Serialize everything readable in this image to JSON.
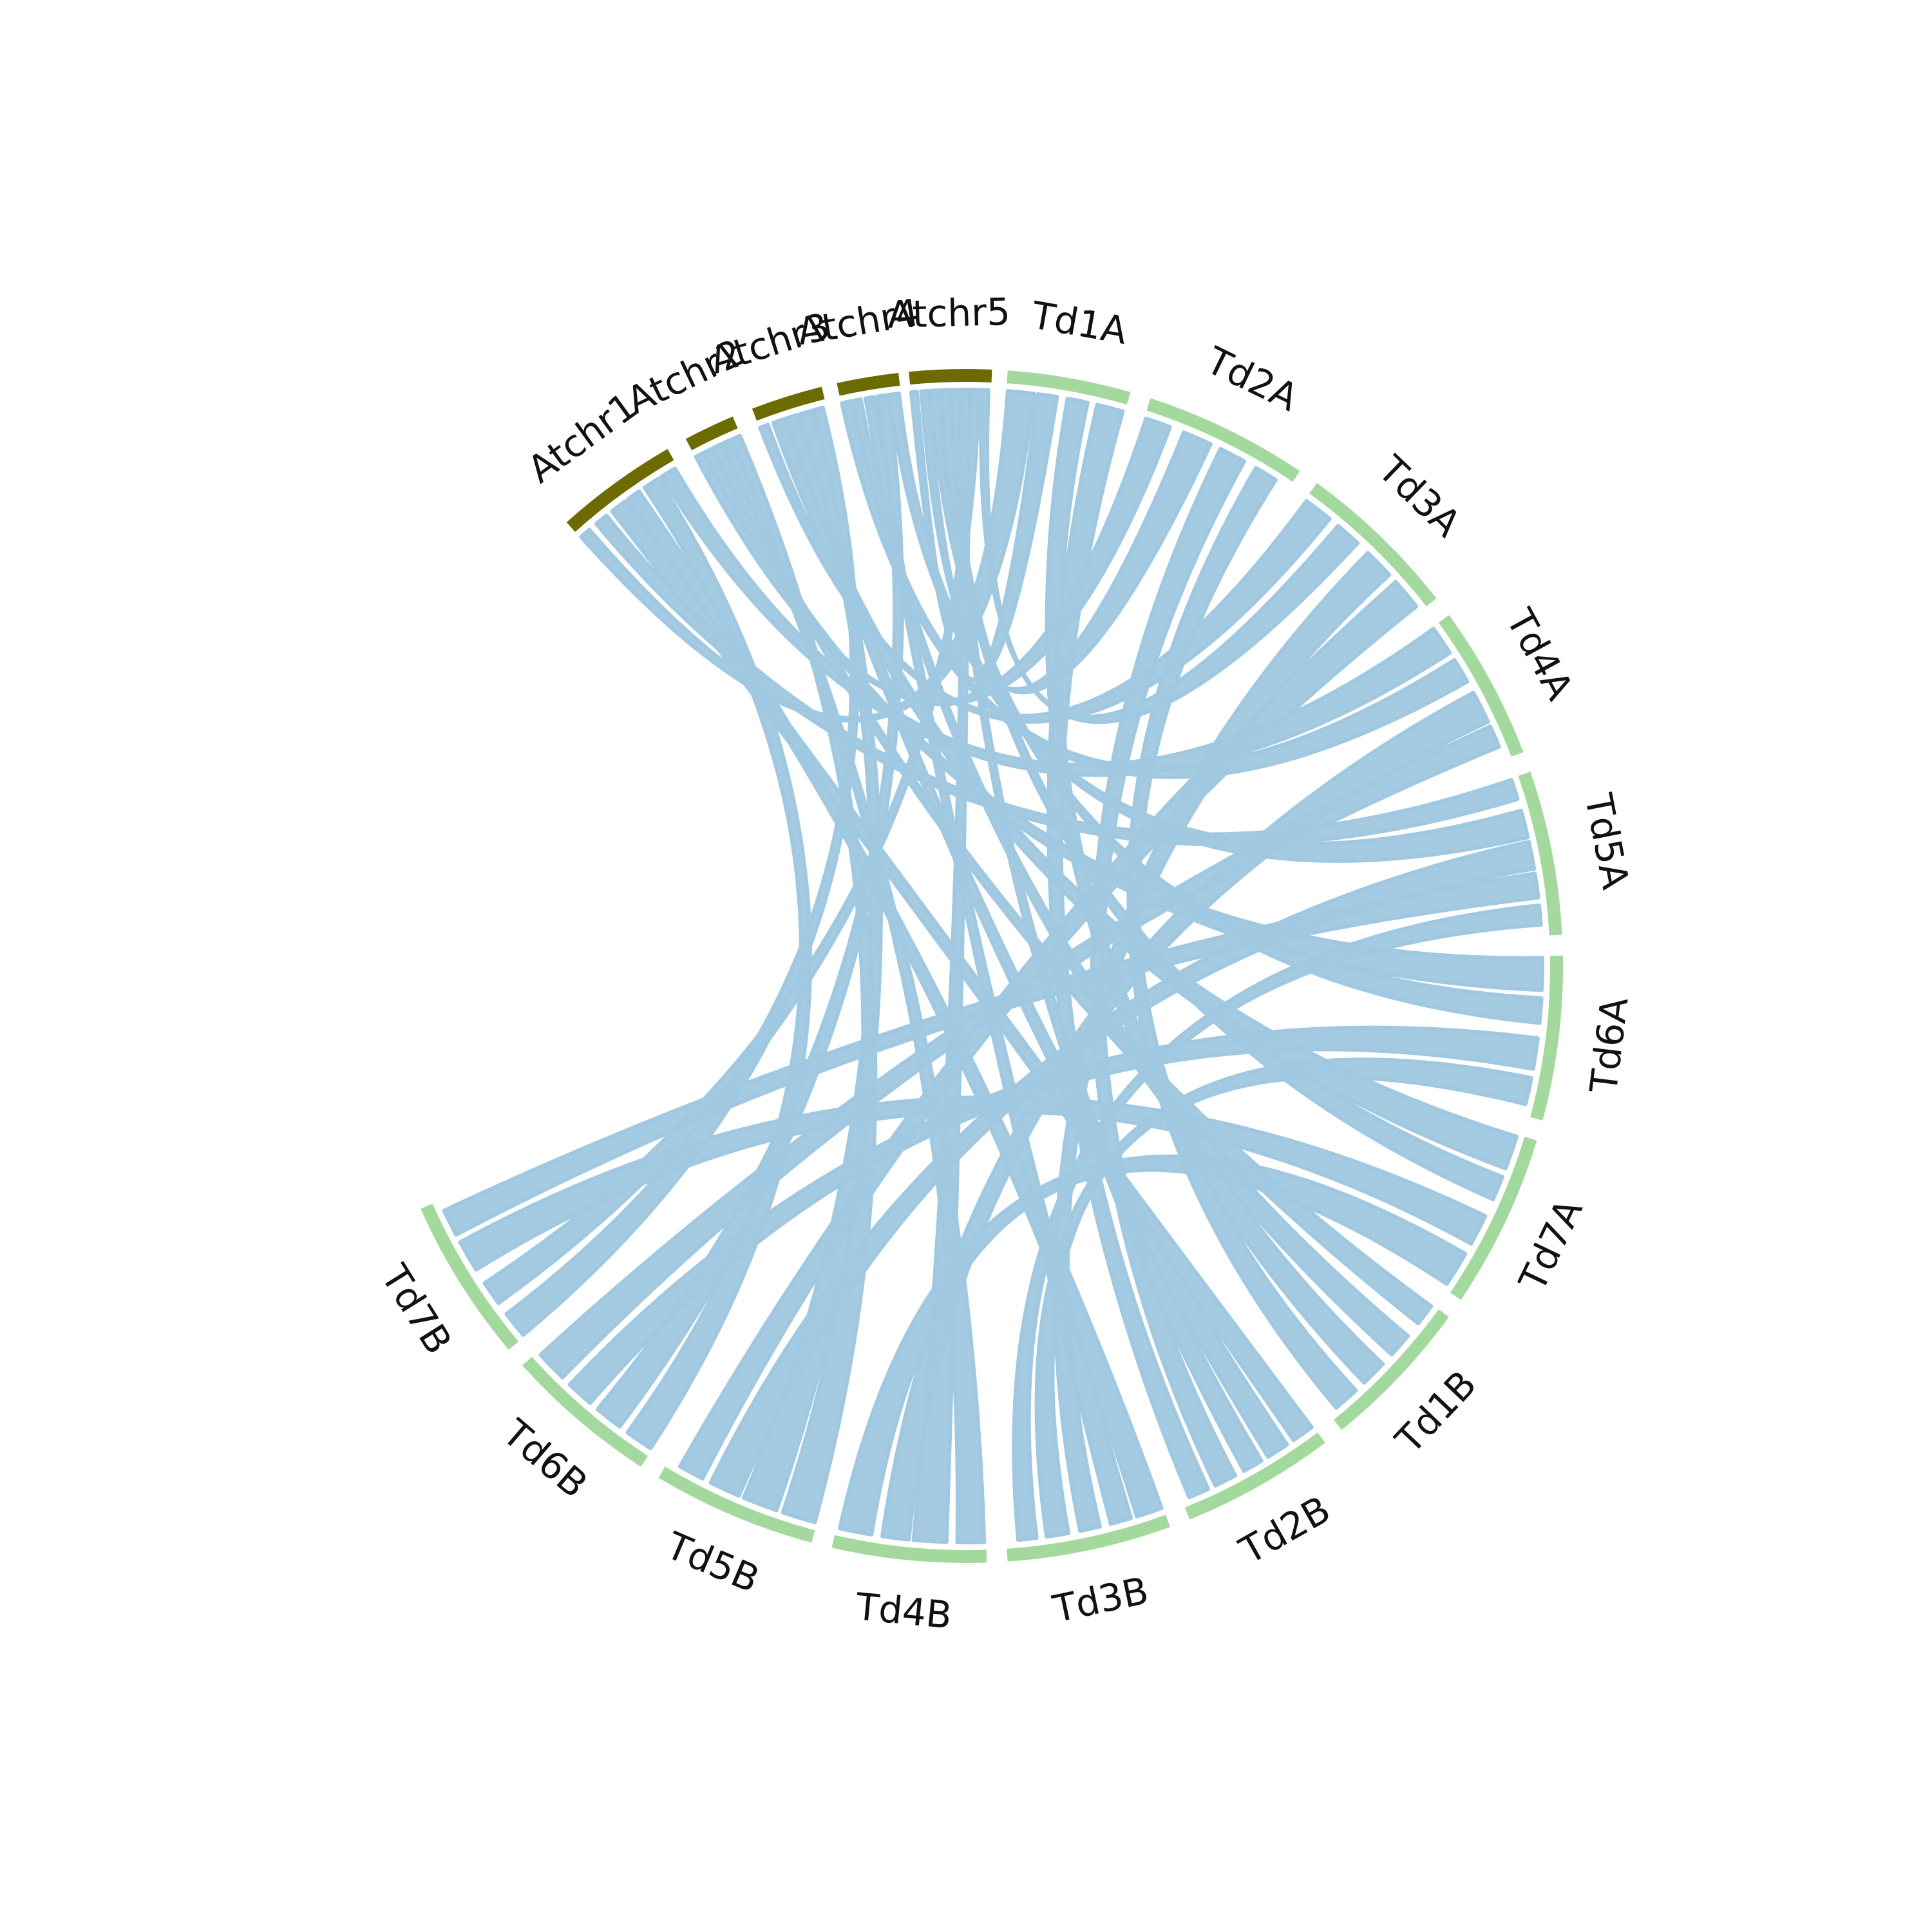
{
  "colors": {
    "background": "#ffffff",
    "outgroup_track": "#6b6b00",
    "wheat_track": "#a3d99d",
    "link": "#a0c8e0",
    "label": "#111111"
  },
  "chromosomes": [
    {
      "name": "Atchr1",
      "group": "outgroup"
    },
    {
      "name": "Atchr2",
      "group": "outgroup"
    },
    {
      "name": "Atchr3",
      "group": "outgroup"
    },
    {
      "name": "Atchr4",
      "group": "outgroup"
    },
    {
      "name": "Atchr5",
      "group": "outgroup"
    },
    {
      "name": "Td1A",
      "group": "wheat"
    },
    {
      "name": "Td2A",
      "group": "wheat"
    },
    {
      "name": "Td3A",
      "group": "wheat"
    },
    {
      "name": "Td4A",
      "group": "wheat"
    },
    {
      "name": "Td5A",
      "group": "wheat"
    },
    {
      "name": "Td6A",
      "group": "wheat"
    },
    {
      "name": "Td7A",
      "group": "wheat"
    },
    {
      "name": "Td1B",
      "group": "wheat"
    },
    {
      "name": "Td2B",
      "group": "wheat"
    },
    {
      "name": "Td3B",
      "group": "wheat"
    },
    {
      "name": "Td4B",
      "group": "wheat"
    },
    {
      "name": "Td5B",
      "group": "wheat"
    },
    {
      "name": "Td6B",
      "group": "wheat"
    },
    {
      "name": "Td7B",
      "group": "wheat"
    }
  ],
  "links": [
    {
      "from": "Atchr1",
      "to": "Td1A"
    },
    {
      "from": "Atchr1",
      "to": "Td5A"
    },
    {
      "from": "Atchr1",
      "to": "Td2B"
    },
    {
      "from": "Atchr1",
      "to": "Td3B"
    },
    {
      "from": "Atchr1",
      "to": "Td6B"
    },
    {
      "from": "Atchr1",
      "to": "Td4A"
    },
    {
      "from": "Atchr2",
      "to": "Td2A"
    },
    {
      "from": "Atchr2",
      "to": "Td6A"
    },
    {
      "from": "Atchr2",
      "to": "Td1B"
    },
    {
      "from": "Atchr2",
      "to": "Td4B"
    },
    {
      "from": "Atchr2",
      "to": "Td5B"
    },
    {
      "from": "Atchr3",
      "to": "Td3A"
    },
    {
      "from": "Atchr3",
      "to": "Td7A"
    },
    {
      "from": "Atchr3",
      "to": "Td2B"
    },
    {
      "from": "Atchr3",
      "to": "Td5B"
    },
    {
      "from": "Atchr3",
      "to": "Td7B"
    },
    {
      "from": "Atchr4",
      "to": "Td4A"
    },
    {
      "from": "Atchr4",
      "to": "Td1B"
    },
    {
      "from": "Atchr4",
      "to": "Td3B"
    },
    {
      "from": "Atchr4",
      "to": "Td6B"
    },
    {
      "from": "Atchr4",
      "to": "Td5A"
    },
    {
      "from": "Atchr5",
      "to": "Td1A"
    },
    {
      "from": "Atchr5",
      "to": "Td2A"
    },
    {
      "from": "Atchr5",
      "to": "Td6A"
    },
    {
      "from": "Atchr5",
      "to": "Td7A"
    },
    {
      "from": "Atchr5",
      "to": "Td2B"
    },
    {
      "from": "Atchr5",
      "to": "Td4B"
    },
    {
      "from": "Atchr5",
      "to": "Td7B"
    },
    {
      "from": "Atchr5",
      "to": "Td3A"
    },
    {
      "from": "Td1A",
      "to": "Td1B"
    },
    {
      "from": "Td2A",
      "to": "Td2B"
    },
    {
      "from": "Td3A",
      "to": "Td3B"
    },
    {
      "from": "Td4A",
      "to": "Td4B"
    },
    {
      "from": "Td5A",
      "to": "Td5B"
    },
    {
      "from": "Td6A",
      "to": "Td6B"
    },
    {
      "from": "Td7A",
      "to": "Td7B"
    },
    {
      "from": "Td1A",
      "to": "Td2B"
    },
    {
      "from": "Td3A",
      "to": "Td5B"
    },
    {
      "from": "Td5A",
      "to": "Td7B"
    },
    {
      "from": "Td6A",
      "to": "Td3B"
    },
    {
      "from": "Td7A",
      "to": "Td4B"
    },
    {
      "from": "Td4A",
      "to": "Td6B"
    },
    {
      "from": "Td2A",
      "to": "Td1B"
    },
    {
      "from": "Td5A",
      "to": "Td3B"
    }
  ]
}
